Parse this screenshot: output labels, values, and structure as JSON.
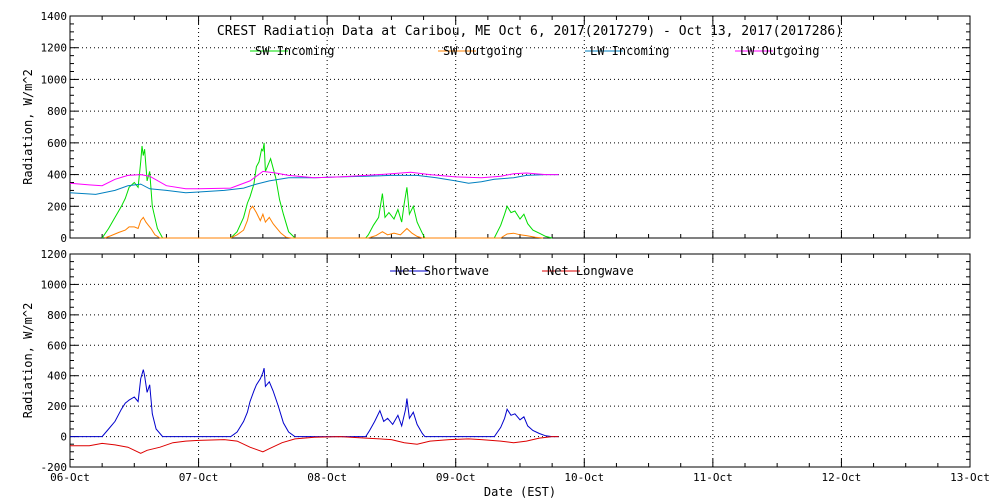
{
  "title": "CREST Radiation Data at Caribou, ME   Oct  6, 2017(2017279) - Oct 13, 2017(2017286)",
  "chart_data": [
    {
      "type": "line",
      "panel": "top",
      "ylabel": "Radiation, W/m^2",
      "ylim": [
        0,
        1400
      ],
      "yticks": [
        "0",
        "200",
        "400",
        "600",
        "800",
        "1000",
        "1200",
        "1400"
      ],
      "xlim": [
        "06-Oct",
        "13-Oct"
      ],
      "grid": true,
      "legend_position": "top",
      "series": [
        {
          "name": "SW Incoming",
          "color": "#00dd00",
          "points": [
            [
              0.25,
              0
            ],
            [
              0.3,
              60
            ],
            [
              0.35,
              130
            ],
            [
              0.4,
              200
            ],
            [
              0.43,
              250
            ],
            [
              0.46,
              320
            ],
            [
              0.5,
              350
            ],
            [
              0.53,
              320
            ],
            [
              0.55,
              480
            ],
            [
              0.56,
              580
            ],
            [
              0.57,
              520
            ],
            [
              0.58,
              560
            ],
            [
              0.6,
              360
            ],
            [
              0.62,
              420
            ],
            [
              0.64,
              200
            ],
            [
              0.68,
              60
            ],
            [
              0.72,
              0
            ],
            [
              1.25,
              0
            ],
            [
              1.3,
              40
            ],
            [
              1.35,
              130
            ],
            [
              1.38,
              220
            ],
            [
              1.4,
              260
            ],
            [
              1.43,
              340
            ],
            [
              1.45,
              450
            ],
            [
              1.47,
              480
            ],
            [
              1.49,
              560
            ],
            [
              1.5,
              550
            ],
            [
              1.51,
              600
            ],
            [
              1.52,
              420
            ],
            [
              1.54,
              460
            ],
            [
              1.56,
              500
            ],
            [
              1.6,
              380
            ],
            [
              1.63,
              240
            ],
            [
              1.66,
              150
            ],
            [
              1.7,
              40
            ],
            [
              1.75,
              0
            ],
            [
              2.3,
              0
            ],
            [
              2.32,
              20
            ],
            [
              2.36,
              80
            ],
            [
              2.4,
              130
            ],
            [
              2.43,
              280
            ],
            [
              2.45,
              130
            ],
            [
              2.48,
              160
            ],
            [
              2.52,
              120
            ],
            [
              2.55,
              180
            ],
            [
              2.58,
              100
            ],
            [
              2.6,
              220
            ],
            [
              2.62,
              320
            ],
            [
              2.64,
              150
            ],
            [
              2.67,
              200
            ],
            [
              2.7,
              100
            ],
            [
              2.74,
              30
            ],
            [
              2.76,
              0
            ],
            [
              3.3,
              0
            ],
            [
              3.35,
              80
            ],
            [
              3.38,
              150
            ],
            [
              3.4,
              200
            ],
            [
              3.43,
              160
            ],
            [
              3.46,
              170
            ],
            [
              3.5,
              120
            ],
            [
              3.53,
              150
            ],
            [
              3.56,
              90
            ],
            [
              3.6,
              50
            ],
            [
              3.65,
              30
            ],
            [
              3.7,
              10
            ],
            [
              3.75,
              0
            ]
          ]
        },
        {
          "name": "SW Outgoing",
          "color": "#ff8000",
          "points": [
            [
              0.27,
              0
            ],
            [
              0.32,
              15
            ],
            [
              0.38,
              35
            ],
            [
              0.43,
              50
            ],
            [
              0.46,
              70
            ],
            [
              0.5,
              70
            ],
            [
              0.53,
              60
            ],
            [
              0.55,
              110
            ],
            [
              0.57,
              130
            ],
            [
              0.59,
              100
            ],
            [
              0.61,
              80
            ],
            [
              0.63,
              60
            ],
            [
              0.66,
              20
            ],
            [
              0.7,
              0
            ],
            [
              1.25,
              0
            ],
            [
              1.3,
              20
            ],
            [
              1.35,
              50
            ],
            [
              1.38,
              110
            ],
            [
              1.4,
              180
            ],
            [
              1.42,
              200
            ],
            [
              1.45,
              160
            ],
            [
              1.48,
              110
            ],
            [
              1.5,
              150
            ],
            [
              1.52,
              100
            ],
            [
              1.55,
              130
            ],
            [
              1.58,
              90
            ],
            [
              1.6,
              70
            ],
            [
              1.64,
              30
            ],
            [
              1.68,
              5
            ],
            [
              1.72,
              0
            ],
            [
              2.32,
              0
            ],
            [
              2.38,
              15
            ],
            [
              2.43,
              40
            ],
            [
              2.47,
              20
            ],
            [
              2.52,
              30
            ],
            [
              2.57,
              20
            ],
            [
              2.62,
              60
            ],
            [
              2.66,
              30
            ],
            [
              2.7,
              10
            ],
            [
              2.74,
              0
            ],
            [
              3.35,
              0
            ],
            [
              3.4,
              25
            ],
            [
              3.45,
              30
            ],
            [
              3.5,
              20
            ],
            [
              3.55,
              15
            ],
            [
              3.62,
              5
            ],
            [
              3.68,
              0
            ]
          ]
        },
        {
          "name": "LW Incoming",
          "color": "#0080c0",
          "points": [
            [
              0.0,
              285
            ],
            [
              0.2,
              275
            ],
            [
              0.35,
              300
            ],
            [
              0.45,
              330
            ],
            [
              0.55,
              340
            ],
            [
              0.62,
              310
            ],
            [
              0.75,
              300
            ],
            [
              0.9,
              285
            ],
            [
              1.0,
              290
            ],
            [
              1.2,
              300
            ],
            [
              1.35,
              315
            ],
            [
              1.45,
              340
            ],
            [
              1.55,
              360
            ],
            [
              1.7,
              380
            ],
            [
              1.9,
              380
            ],
            [
              2.1,
              385
            ],
            [
              2.3,
              390
            ],
            [
              2.5,
              395
            ],
            [
              2.7,
              395
            ],
            [
              2.85,
              380
            ],
            [
              3.0,
              360
            ],
            [
              3.1,
              345
            ],
            [
              3.2,
              355
            ],
            [
              3.3,
              370
            ],
            [
              3.45,
              380
            ],
            [
              3.55,
              395
            ],
            [
              3.7,
              400
            ],
            [
              3.8,
              400
            ]
          ]
        },
        {
          "name": "LW Outgoing",
          "color": "#ff00ff",
          "points": [
            [
              0.0,
              345
            ],
            [
              0.15,
              335
            ],
            [
              0.25,
              330
            ],
            [
              0.35,
              370
            ],
            [
              0.45,
              395
            ],
            [
              0.55,
              400
            ],
            [
              0.62,
              390
            ],
            [
              0.75,
              330
            ],
            [
              0.9,
              310
            ],
            [
              1.0,
              310
            ],
            [
              1.25,
              315
            ],
            [
              1.4,
              360
            ],
            [
              1.5,
              420
            ],
            [
              1.6,
              410
            ],
            [
              1.7,
              395
            ],
            [
              1.9,
              380
            ],
            [
              2.1,
              385
            ],
            [
              2.3,
              395
            ],
            [
              2.5,
              405
            ],
            [
              2.65,
              415
            ],
            [
              2.8,
              400
            ],
            [
              3.0,
              385
            ],
            [
              3.2,
              380
            ],
            [
              3.35,
              390
            ],
            [
              3.45,
              405
            ],
            [
              3.55,
              410
            ],
            [
              3.7,
              400
            ],
            [
              3.8,
              400
            ]
          ]
        }
      ]
    },
    {
      "type": "line",
      "panel": "bottom",
      "ylabel": "Radiation, W/m^2",
      "xlabel": "Date (EST)",
      "ylim": [
        -200,
        1200
      ],
      "yticks": [
        "-200",
        "0",
        "200",
        "400",
        "600",
        "800",
        "1000",
        "1200"
      ],
      "categories": [
        "06-Oct",
        "07-Oct",
        "08-Oct",
        "09-Oct",
        "10-Oct",
        "11-Oct",
        "12-Oct",
        "13-Oct"
      ],
      "xlim": [
        "06-Oct",
        "13-Oct"
      ],
      "grid": true,
      "legend_position": "top",
      "series": [
        {
          "name": "Net Shortwave",
          "color": "#0000cc",
          "points": [
            [
              0.0,
              0
            ],
            [
              0.25,
              0
            ],
            [
              0.3,
              50
            ],
            [
              0.35,
              100
            ],
            [
              0.4,
              180
            ],
            [
              0.43,
              220
            ],
            [
              0.46,
              240
            ],
            [
              0.5,
              260
            ],
            [
              0.53,
              230
            ],
            [
              0.55,
              380
            ],
            [
              0.57,
              440
            ],
            [
              0.58,
              400
            ],
            [
              0.6,
              290
            ],
            [
              0.62,
              340
            ],
            [
              0.64,
              150
            ],
            [
              0.67,
              50
            ],
            [
              0.72,
              0
            ],
            [
              1.25,
              0
            ],
            [
              1.3,
              30
            ],
            [
              1.35,
              100
            ],
            [
              1.38,
              160
            ],
            [
              1.4,
              230
            ],
            [
              1.43,
              300
            ],
            [
              1.45,
              340
            ],
            [
              1.48,
              380
            ],
            [
              1.5,
              420
            ],
            [
              1.51,
              450
            ],
            [
              1.52,
              330
            ],
            [
              1.55,
              360
            ],
            [
              1.58,
              300
            ],
            [
              1.62,
              200
            ],
            [
              1.66,
              90
            ],
            [
              1.7,
              30
            ],
            [
              1.75,
              0
            ],
            [
              2.3,
              0
            ],
            [
              2.33,
              40
            ],
            [
              2.37,
              100
            ],
            [
              2.41,
              170
            ],
            [
              2.44,
              100
            ],
            [
              2.47,
              120
            ],
            [
              2.51,
              80
            ],
            [
              2.55,
              140
            ],
            [
              2.58,
              70
            ],
            [
              2.61,
              180
            ],
            [
              2.62,
              250
            ],
            [
              2.64,
              120
            ],
            [
              2.67,
              160
            ],
            [
              2.7,
              80
            ],
            [
              2.74,
              20
            ],
            [
              2.76,
              0
            ],
            [
              3.3,
              0
            ],
            [
              3.35,
              60
            ],
            [
              3.38,
              120
            ],
            [
              3.4,
              180
            ],
            [
              3.43,
              140
            ],
            [
              3.46,
              150
            ],
            [
              3.5,
              110
            ],
            [
              3.53,
              130
            ],
            [
              3.56,
              70
            ],
            [
              3.6,
              40
            ],
            [
              3.65,
              20
            ],
            [
              3.7,
              5
            ],
            [
              3.75,
              0
            ],
            [
              3.8,
              0
            ]
          ]
        },
        {
          "name": "Net Longwave",
          "color": "#dd0000",
          "points": [
            [
              0.0,
              -60
            ],
            [
              0.15,
              -60
            ],
            [
              0.25,
              -45
            ],
            [
              0.35,
              -55
            ],
            [
              0.45,
              -70
            ],
            [
              0.55,
              -110
            ],
            [
              0.6,
              -90
            ],
            [
              0.7,
              -70
            ],
            [
              0.8,
              -40
            ],
            [
              0.9,
              -30
            ],
            [
              1.0,
              -25
            ],
            [
              1.2,
              -20
            ],
            [
              1.3,
              -30
            ],
            [
              1.4,
              -70
            ],
            [
              1.5,
              -100
            ],
            [
              1.55,
              -80
            ],
            [
              1.65,
              -40
            ],
            [
              1.75,
              -15
            ],
            [
              1.9,
              -5
            ],
            [
              2.1,
              0
            ],
            [
              2.3,
              -10
            ],
            [
              2.5,
              -20
            ],
            [
              2.6,
              -40
            ],
            [
              2.7,
              -50
            ],
            [
              2.8,
              -30
            ],
            [
              2.95,
              -20
            ],
            [
              3.1,
              -15
            ],
            [
              3.2,
              -20
            ],
            [
              3.35,
              -30
            ],
            [
              3.45,
              -40
            ],
            [
              3.55,
              -30
            ],
            [
              3.65,
              -10
            ],
            [
              3.75,
              0
            ],
            [
              3.8,
              0
            ]
          ]
        }
      ]
    }
  ]
}
